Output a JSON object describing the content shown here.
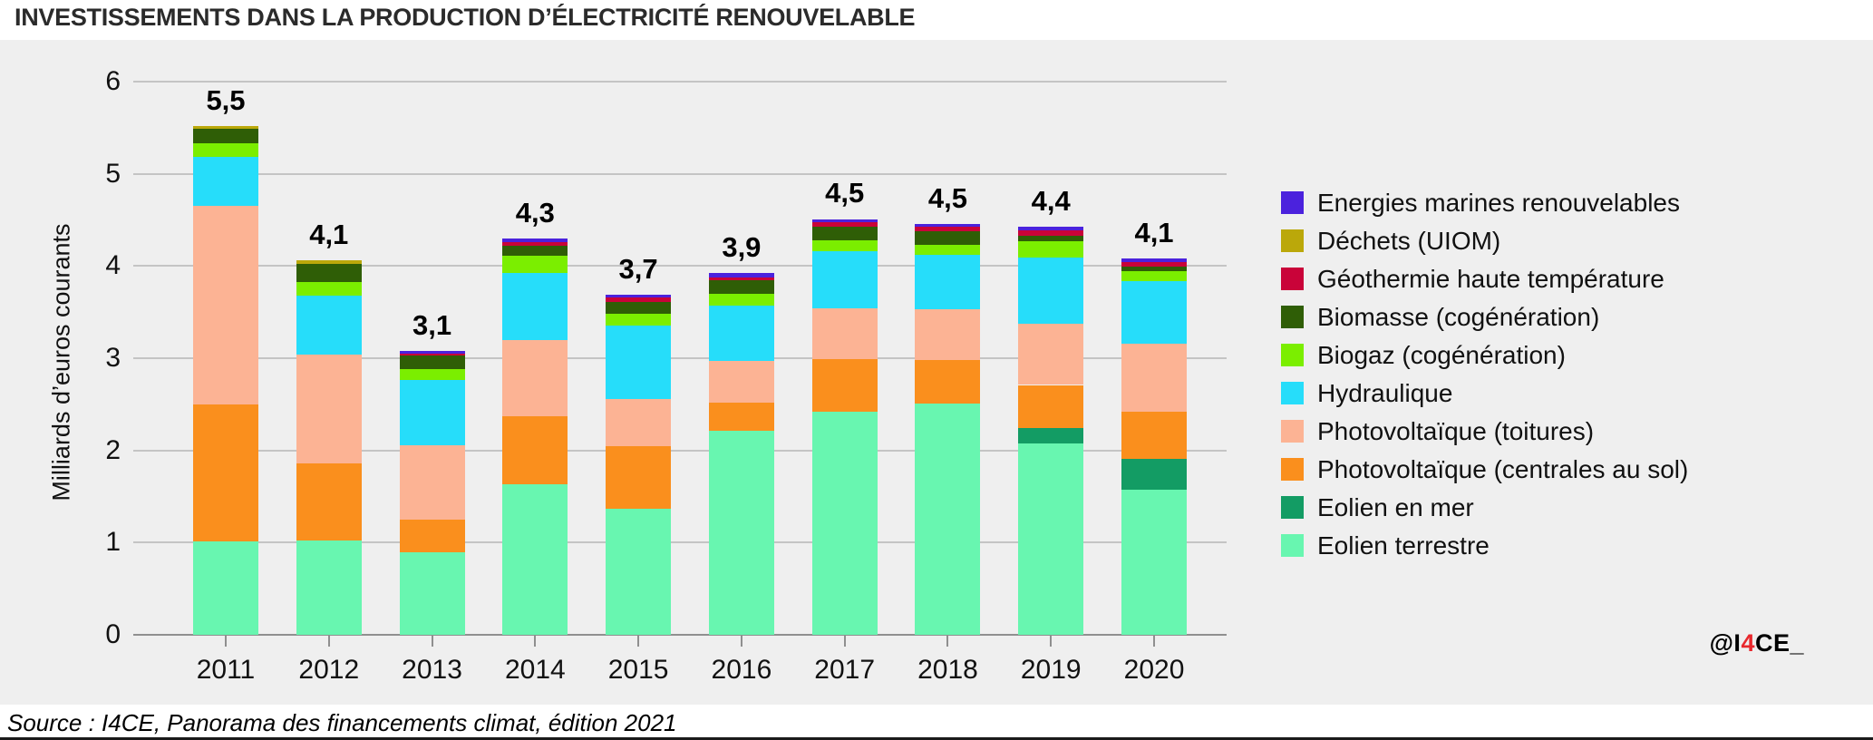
{
  "title": "INVESTISSEMENTS DANS LA PRODUCTION D’ÉLECTRICITÉ RENOUVELABLE",
  "source_note": "Source : I4CE, Panorama des financements climat, édition 2021",
  "watermark": {
    "prefix": "@I",
    "accent": "4",
    "suffix": "CE_",
    "accent_color": "#e8282d"
  },
  "chart_data": {
    "type": "bar",
    "stacked": true,
    "title": "INVESTISSEMENTS DANS LA PRODUCTION D’ÉLECTRICITÉ RENOUVELABLE",
    "xlabel": "",
    "ylabel": "Milliards d’euros courants",
    "ylim": [
      0,
      6
    ],
    "yticks": [
      0,
      1,
      2,
      3,
      4,
      5,
      6
    ],
    "grid": true,
    "legend_position": "right",
    "categories": [
      "2011",
      "2012",
      "2013",
      "2014",
      "2015",
      "2016",
      "2017",
      "2018",
      "2019",
      "2020"
    ],
    "totals_labels": [
      "5,5",
      "4,1",
      "3,1",
      "4,3",
      "3,7",
      "3,9",
      "4,5",
      "4,5",
      "4,4",
      "4,1"
    ],
    "totals_values": [
      5.5,
      4.1,
      3.1,
      4.3,
      3.7,
      3.9,
      4.5,
      4.5,
      4.4,
      4.1
    ],
    "series": [
      {
        "name": "Eolien terrestre",
        "color": "#68f6b0",
        "values": [
          1.01,
          1.02,
          0.9,
          1.63,
          1.37,
          2.21,
          2.42,
          2.51,
          2.08,
          1.57
        ]
      },
      {
        "name": "Eolien en mer",
        "color": "#139c64",
        "values": [
          0,
          0,
          0,
          0,
          0,
          0,
          0,
          0,
          0.16,
          0.34
        ]
      },
      {
        "name": "Photovoltaïque (centrales au sol)",
        "color": "#fa8f1d",
        "values": [
          1.49,
          0.84,
          0.35,
          0.74,
          0.68,
          0.31,
          0.57,
          0.47,
          0.47,
          0.51
        ]
      },
      {
        "name": "Photovoltaïque (toitures)",
        "color": "#fcb394",
        "values": [
          2.15,
          1.18,
          0.81,
          0.83,
          0.51,
          0.45,
          0.55,
          0.55,
          0.66,
          0.74
        ]
      },
      {
        "name": "Hydraulique",
        "color": "#26ddfa",
        "values": [
          0.53,
          0.64,
          0.7,
          0.72,
          0.79,
          0.6,
          0.62,
          0.59,
          0.72,
          0.68
        ]
      },
      {
        "name": "Biogaz (cogénération)",
        "color": "#7bee00",
        "values": [
          0.15,
          0.15,
          0.12,
          0.19,
          0.13,
          0.13,
          0.12,
          0.11,
          0.18,
          0.1
        ]
      },
      {
        "name": "Biomasse (cogénération)",
        "color": "#2f5e06",
        "values": [
          0.16,
          0.19,
          0.15,
          0.11,
          0.13,
          0.15,
          0.15,
          0.15,
          0.06,
          0.05
        ]
      },
      {
        "name": "Géothermie haute température",
        "color": "#c90339",
        "values": [
          0,
          0,
          0.02,
          0.04,
          0.05,
          0.03,
          0.05,
          0.05,
          0.06,
          0.05
        ]
      },
      {
        "name": "Déchets (UIOM)",
        "color": "#bba80a",
        "values": [
          0.03,
          0.04,
          0,
          0,
          0,
          0,
          0,
          0,
          0,
          0
        ]
      },
      {
        "name": "Energies marines renouvelables",
        "color": "#4b22dd",
        "values": [
          0,
          0,
          0.03,
          0.04,
          0.03,
          0.04,
          0.03,
          0.03,
          0.04,
          0.04
        ]
      }
    ]
  }
}
